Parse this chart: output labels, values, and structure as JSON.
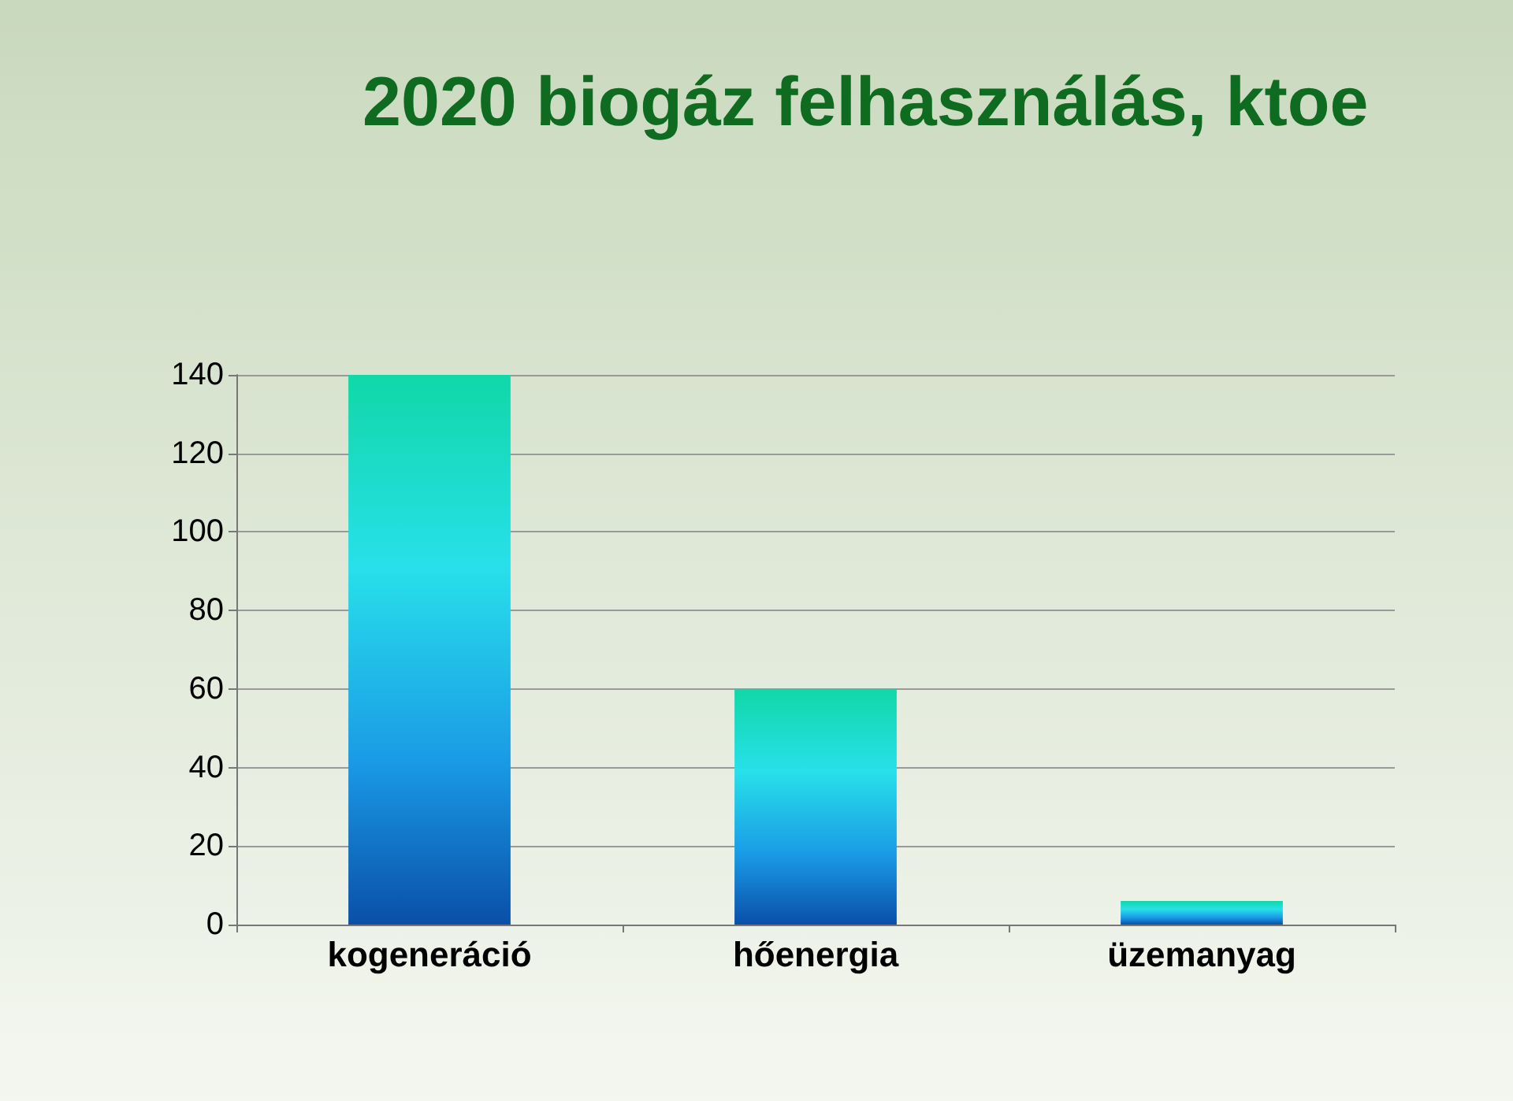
{
  "chart_data": {
    "type": "bar",
    "title": "2020 biogáz felhasználás, ktoe",
    "categories": [
      "kogeneráció",
      "hőenergia",
      "üzemanyag"
    ],
    "values": [
      140,
      60,
      6
    ],
    "color": "#1a9be6",
    "ylim": [
      0,
      140
    ],
    "yticks": [
      0,
      20,
      40,
      60,
      80,
      100,
      120,
      140
    ],
    "grid": "y"
  }
}
